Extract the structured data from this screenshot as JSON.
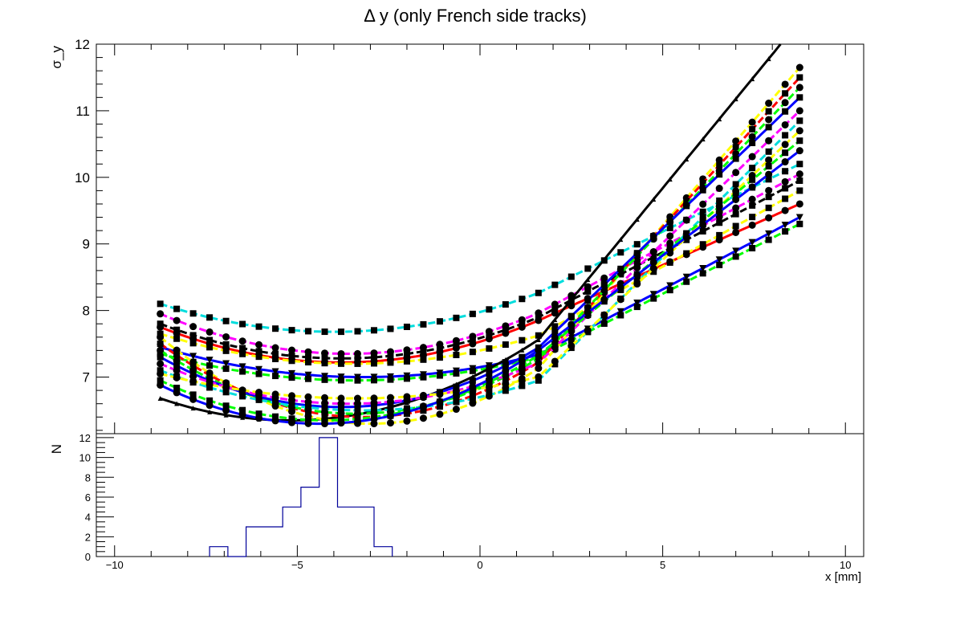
{
  "chart_data": [
    {
      "type": "line",
      "title": "Δ y (only French side tracks)",
      "xlabel": "",
      "ylabel": "σ_y",
      "xlim": [
        -10.5,
        10.5
      ],
      "ylim": [
        6.15,
        12
      ],
      "y_ticks": [
        7,
        8,
        9,
        10,
        11,
        12
      ],
      "y_tick_labels": [
        "7",
        "8",
        "9",
        "10",
        "11",
        "12"
      ],
      "x_tick_labels_shown": false,
      "grid": false,
      "legend": "none",
      "x_samples": [
        -8.75,
        -8.3,
        -7.85,
        -7.4,
        -6.95,
        -6.5,
        -6.05,
        -5.6,
        -5.15,
        -4.7,
        -4.25,
        -3.8,
        -3.35,
        -2.9,
        -2.45,
        -2.0,
        -1.55,
        -1.1,
        -0.65,
        -0.2,
        0.25,
        0.7,
        1.15,
        1.6,
        2.05,
        2.5,
        2.95,
        3.4,
        3.85,
        4.3,
        4.75,
        5.2,
        5.65,
        6.1,
        6.55,
        7.0,
        7.45,
        7.9,
        8.35,
        8.75
      ],
      "series_model": "quadratic-plus-linear: y = y_min + a*(x - x_min)^2 for x < x_b, linear continuation above",
      "series": [
        {
          "color": "#00dddd",
          "marker": "square",
          "style": "dashed",
          "x_min": -4.0,
          "y_min": 7.68,
          "y_left": 8.1,
          "y_right": 10.2
        },
        {
          "color": "#ff00ff",
          "marker": "circle",
          "style": "dashed",
          "x_min": -3.6,
          "y_min": 7.35,
          "y_left": 7.95,
          "y_right": 10.05
        },
        {
          "color": "#000000",
          "marker": "square",
          "style": "dashed",
          "x_min": -3.8,
          "y_min": 7.28,
          "y_left": 7.8,
          "y_right": 9.95
        },
        {
          "color": "#ff0000",
          "marker": "circle",
          "style": "solid",
          "x_min": -3.8,
          "y_min": 7.22,
          "y_left": 7.75,
          "y_right": 9.6
        },
        {
          "color": "#ffff00",
          "marker": "square",
          "style": "dashed",
          "x_min": -3.5,
          "y_min": 7.2,
          "y_left": 7.65,
          "y_right": 9.8
        },
        {
          "color": "#0000ff",
          "marker": "triangle-down",
          "style": "solid",
          "x_min": -3.2,
          "y_min": 7.0,
          "y_left": 7.45,
          "y_right": 9.4
        },
        {
          "color": "#00ff00",
          "marker": "square",
          "style": "dashed",
          "x_min": -3.4,
          "y_min": 6.95,
          "y_left": 7.35,
          "y_right": 9.3
        },
        {
          "color": "#000000",
          "marker": "triangle-up",
          "style": "solid",
          "x_min": -5.2,
          "y_min": 6.35,
          "y_left": 6.68,
          "y_right": 12.35
        },
        {
          "color": "#ffff00",
          "marker": "circle",
          "style": "dashed",
          "x_min": -3.0,
          "y_min": 6.3,
          "y_left": 7.6,
          "y_right": 11.65
        },
        {
          "color": "#ff0000",
          "marker": "square",
          "style": "dashed",
          "x_min": -3.2,
          "y_min": 6.4,
          "y_left": 7.5,
          "y_right": 11.5
        },
        {
          "color": "#00ff00",
          "marker": "circle",
          "style": "dashed",
          "x_min": -3.4,
          "y_min": 6.45,
          "y_left": 7.4,
          "y_right": 11.35
        },
        {
          "color": "#0000ff",
          "marker": "square",
          "style": "solid",
          "x_min": -3.8,
          "y_min": 6.55,
          "y_left": 7.3,
          "y_right": 11.2
        },
        {
          "color": "#ff00ff",
          "marker": "circle",
          "style": "dashed",
          "x_min": -3.6,
          "y_min": 6.6,
          "y_left": 7.2,
          "y_right": 11.0
        },
        {
          "color": "#00dddd",
          "marker": "square",
          "style": "dashed",
          "x_min": -3.2,
          "y_min": 6.5,
          "y_left": 7.1,
          "y_right": 10.85
        },
        {
          "color": "#ffff00",
          "marker": "circle",
          "style": "dashed",
          "x_min": -3.4,
          "y_min": 6.68,
          "y_left": 7.05,
          "y_right": 10.7
        },
        {
          "color": "#00ff00",
          "marker": "square",
          "style": "dashed",
          "x_min": -4.2,
          "y_min": 6.35,
          "y_left": 6.95,
          "y_right": 10.55
        },
        {
          "color": "#0000ff",
          "marker": "circle",
          "style": "solid",
          "x_min": -4.4,
          "y_min": 6.3,
          "y_left": 6.88,
          "y_right": 10.4
        }
      ]
    },
    {
      "type": "bar",
      "subtype": "histogram-step",
      "ylabel": "N",
      "xlabel": "x [mm]",
      "xlim": [
        -10.5,
        10.5
      ],
      "ylim": [
        0,
        12.4
      ],
      "x_ticks": [
        -10,
        -5,
        0,
        5,
        10
      ],
      "x_tick_labels": [
        "−10",
        "−5",
        "0",
        "5",
        "10"
      ],
      "y_ticks": [
        0,
        2,
        4,
        6,
        8,
        10,
        12
      ],
      "y_tick_labels": [
        "0",
        "2",
        "4",
        "6",
        "8",
        "10",
        "12"
      ],
      "bin_edges": [
        -7.4,
        -6.9,
        -6.4,
        -5.9,
        -5.4,
        -4.9,
        -4.4,
        -3.9,
        -3.4,
        -2.9,
        -2.4
      ],
      "bin_counts": [
        1,
        0,
        3,
        3,
        5,
        7,
        12,
        5,
        5,
        1
      ],
      "line_color": "#000099",
      "grid": false,
      "legend": "none"
    }
  ]
}
